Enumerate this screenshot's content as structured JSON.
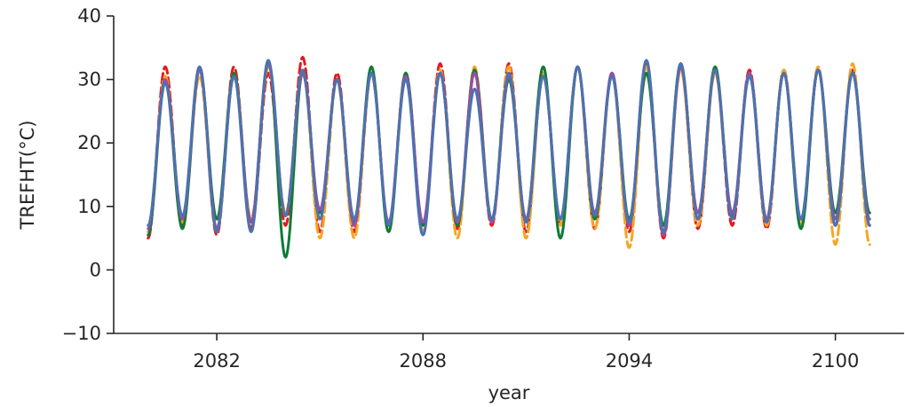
{
  "chart_data": {
    "type": "line",
    "title": "",
    "xlabel": "year",
    "ylabel": "TREFHT(°C)",
    "xlim": [
      2079,
      2102
    ],
    "ylim": [
      -10,
      40
    ],
    "xticks": [
      2082,
      2088,
      2094,
      2100
    ],
    "xtick_labels": [
      "2082",
      "2088",
      "2094",
      "2100"
    ],
    "yticks": [
      -10,
      0,
      10,
      20,
      30,
      40
    ],
    "ytick_labels": [
      "−10",
      "0",
      "10",
      "20",
      "30",
      "40"
    ],
    "grid": false,
    "legend": "none",
    "time_range": [
      2080.0,
      2101.0
    ],
    "series": [
      {
        "color": "#e41a1c",
        "dash": "dashed",
        "annual_peaks": [
          32,
          32,
          32,
          31,
          33.5,
          31,
          31,
          31,
          32.5,
          31,
          32.5,
          31,
          32,
          31,
          32.5,
          32,
          31.5,
          31.5,
          31.5,
          31.5,
          31.5
        ],
        "annual_troughs": [
          5,
          7,
          5.5,
          6.5,
          7,
          6,
          6,
          7,
          6,
          6.5,
          7,
          6,
          7,
          6.5,
          6,
          5,
          6.5,
          7,
          6.5,
          7,
          7
        ]
      },
      {
        "color": "#f5a623",
        "dash": "dashed",
        "annual_peaks": [
          30.5,
          30.5,
          31,
          32,
          31.5,
          30,
          31,
          31,
          31.5,
          32,
          32,
          31,
          32,
          31,
          32,
          31.5,
          31,
          31,
          31.5,
          32,
          32.5
        ],
        "annual_troughs": [
          6,
          7.5,
          6,
          8,
          9,
          5,
          5,
          7,
          6,
          5,
          7.5,
          5,
          7,
          6.5,
          3.5,
          5.5,
          7,
          8.5,
          7,
          7,
          4
        ]
      },
      {
        "color": "#0f7b36",
        "dash": "solid",
        "annual_peaks": [
          29.5,
          31.5,
          31,
          33,
          31,
          30,
          32,
          31,
          31,
          31.5,
          30,
          32,
          32,
          31,
          31,
          32.5,
          32,
          31,
          31,
          31.5,
          31
        ],
        "annual_troughs": [
          5.5,
          6.5,
          8,
          7.5,
          2,
          9,
          7.5,
          6,
          7,
          7,
          8,
          8,
          5,
          8,
          8,
          7,
          8,
          8.5,
          8,
          6.5,
          9
        ]
      },
      {
        "color": "#984ea3",
        "dash": "solid",
        "annual_peaks": [
          30,
          31.5,
          30.5,
          32.5,
          31,
          30,
          31,
          30.5,
          31,
          31,
          30.5,
          30.5,
          32,
          31,
          33,
          32,
          31.5,
          31,
          31,
          31.5,
          31
        ],
        "annual_troughs": [
          6.5,
          8,
          6.5,
          7.5,
          8.5,
          9.5,
          7,
          7.5,
          7.5,
          7.5,
          7.5,
          8,
          8,
          9,
          7,
          5.5,
          9,
          9,
          8,
          8,
          8
        ]
      },
      {
        "color": "#4c72b0",
        "dash": "solid",
        "annual_peaks": [
          29.5,
          32,
          30.5,
          33,
          31.5,
          30,
          31,
          30,
          31,
          28.5,
          31,
          30.5,
          32,
          30.5,
          33,
          32.5,
          31.5,
          30.5,
          31,
          31.5,
          31
        ],
        "annual_troughs": [
          7,
          8.5,
          6,
          6,
          8.5,
          8,
          8,
          7,
          5.5,
          8,
          8,
          7.5,
          8,
          8.5,
          7.5,
          6,
          8,
          8,
          7.5,
          8,
          7
        ]
      }
    ]
  }
}
